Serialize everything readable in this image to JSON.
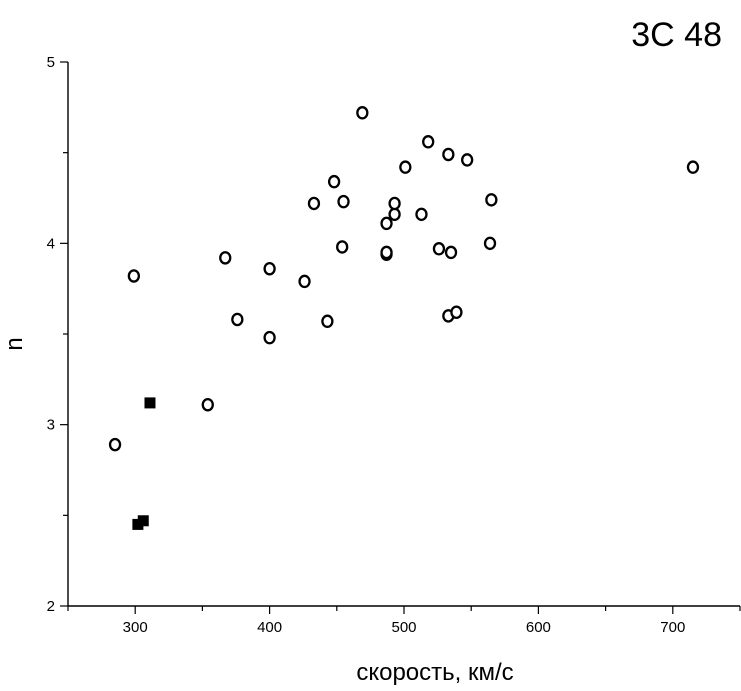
{
  "chart_data": {
    "type": "scatter",
    "title": "3C 48",
    "xlabel": "скорость, км/с",
    "ylabel": "n",
    "xlim": [
      250,
      750
    ],
    "ylim": [
      2,
      5
    ],
    "x_ticks": [
      300,
      400,
      500,
      600,
      700
    ],
    "y_ticks": [
      2,
      3,
      4,
      5
    ],
    "grid": false,
    "series": [
      {
        "marker": "open-circle",
        "color": "#000000",
        "points": [
          {
            "x": 285,
            "y": 2.89
          },
          {
            "x": 299,
            "y": 3.82
          },
          {
            "x": 354,
            "y": 3.11
          },
          {
            "x": 367,
            "y": 3.92
          },
          {
            "x": 376,
            "y": 3.58
          },
          {
            "x": 400,
            "y": 3.48
          },
          {
            "x": 400,
            "y": 3.86
          },
          {
            "x": 426,
            "y": 3.79
          },
          {
            "x": 433,
            "y": 4.22
          },
          {
            "x": 443,
            "y": 3.57
          },
          {
            "x": 448,
            "y": 4.34
          },
          {
            "x": 454,
            "y": 3.98
          },
          {
            "x": 455,
            "y": 4.23
          },
          {
            "x": 469,
            "y": 4.72
          },
          {
            "x": 487,
            "y": 3.94
          },
          {
            "x": 487,
            "y": 3.95
          },
          {
            "x": 487,
            "y": 4.11
          },
          {
            "x": 493,
            "y": 4.16
          },
          {
            "x": 493,
            "y": 4.22
          },
          {
            "x": 501,
            "y": 4.42
          },
          {
            "x": 513,
            "y": 4.16
          },
          {
            "x": 518,
            "y": 4.56
          },
          {
            "x": 526,
            "y": 3.97
          },
          {
            "x": 533,
            "y": 3.6
          },
          {
            "x": 533,
            "y": 4.49
          },
          {
            "x": 535,
            "y": 3.95
          },
          {
            "x": 539,
            "y": 3.62
          },
          {
            "x": 547,
            "y": 4.46
          },
          {
            "x": 564,
            "y": 4.0
          },
          {
            "x": 565,
            "y": 4.24
          },
          {
            "x": 715,
            "y": 4.42
          }
        ]
      },
      {
        "marker": "filled-square",
        "color": "#000000",
        "points": [
          {
            "x": 302,
            "y": 2.45
          },
          {
            "x": 306,
            "y": 2.47
          },
          {
            "x": 311,
            "y": 3.12
          }
        ]
      }
    ]
  }
}
